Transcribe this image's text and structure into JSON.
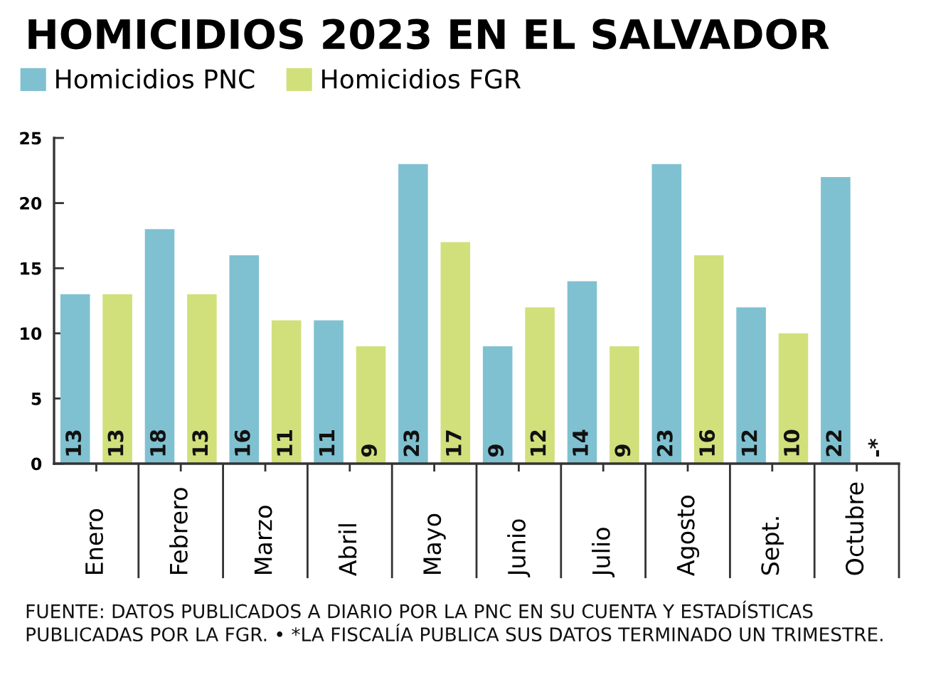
{
  "chart_data": {
    "type": "bar",
    "title": "HOMICIDIOS 2023 EN EL SALVADOR",
    "categories": [
      "Enero",
      "Febrero",
      "Marzo",
      "Abril",
      "Mayo",
      "Junio",
      "Julio",
      "Agosto",
      "Sept.",
      "Octubre"
    ],
    "series": [
      {
        "name": "Homicidios PNC",
        "color": "#80c1d1",
        "values": [
          13,
          18,
          16,
          11,
          23,
          9,
          14,
          23,
          12,
          22
        ],
        "value_labels": [
          "13",
          "18",
          "16",
          "11",
          "23",
          "9",
          "14",
          "23",
          "12",
          "22"
        ]
      },
      {
        "name": "Homicidios FGR",
        "color": "#d1e07b",
        "values": [
          13,
          13,
          11,
          9,
          17,
          12,
          9,
          16,
          10,
          null
        ],
        "value_labels": [
          "13",
          "13",
          "11",
          "9",
          "17",
          "12",
          "9",
          "16",
          "10",
          "-*"
        ]
      }
    ],
    "ylim": [
      0,
      25
    ],
    "yticks": [
      0,
      5,
      10,
      15,
      20,
      25
    ],
    "grid": false,
    "legend": "top left",
    "annotations": [
      "FUENTE: DATOS PUBLICADOS A DIARIO POR LA PNC EN SU CUENTA Y ESTADÍSTICAS PUBLICADAS POR LA FGR. • *LA FISCALÍA PUBLICA SUS DATOS TERMINADO UN TRIMESTRE."
    ]
  }
}
